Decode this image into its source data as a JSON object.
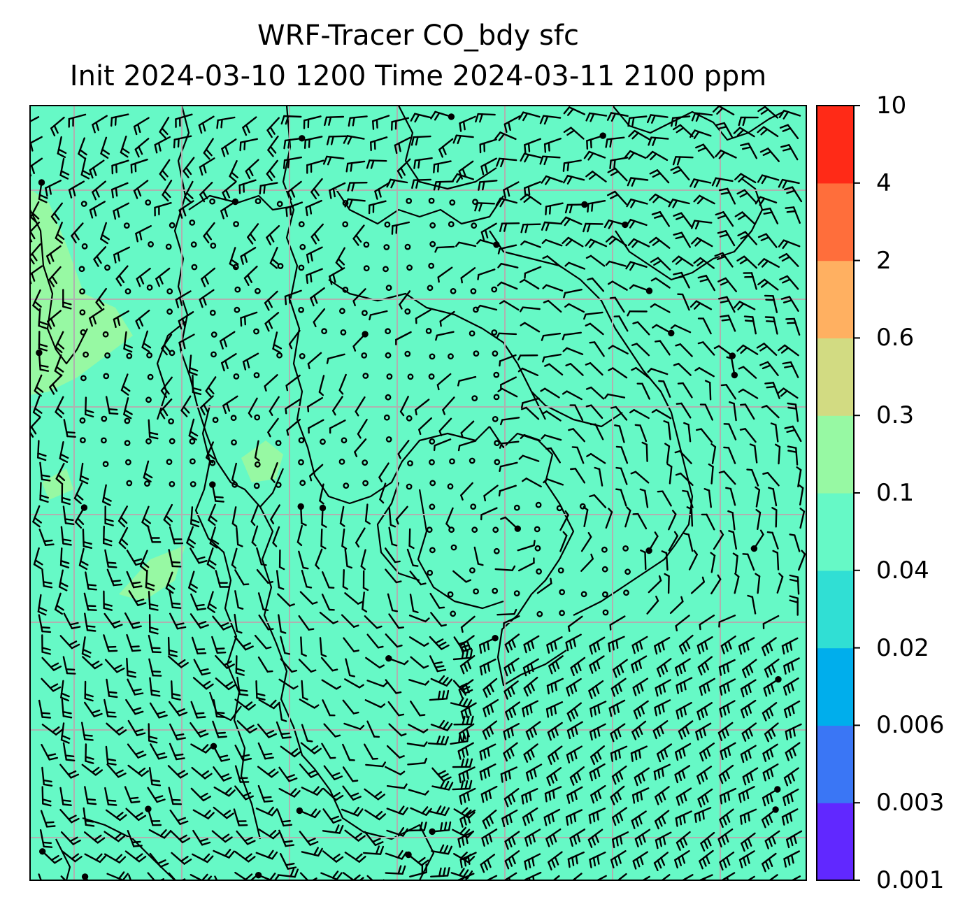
{
  "title": {
    "line1": "WRF-Tracer CO_bdy sfc",
    "line2": "Init 2024-03-10 1200 Time 2024-03-11 2100 ppm"
  },
  "colorbar": {
    "levels": [
      "0.001",
      "0.003",
      "0.006",
      "0.02",
      "0.04",
      "0.1",
      "0.3",
      "0.6",
      "2",
      "4",
      "10"
    ],
    "colors": [
      "#6128ff",
      "#3a76f5",
      "#00aeec",
      "#30dfd4",
      "#66f9c6",
      "#97f9a3",
      "#d2db82",
      "#ffb061",
      "#ff6e3b",
      "#ff2a17"
    ]
  },
  "map": {
    "background_fill": "#66f9c6",
    "elevated_fill": "#97f9a3",
    "gridline_color": "#b0b0b0",
    "barb_color": "#000000"
  }
}
